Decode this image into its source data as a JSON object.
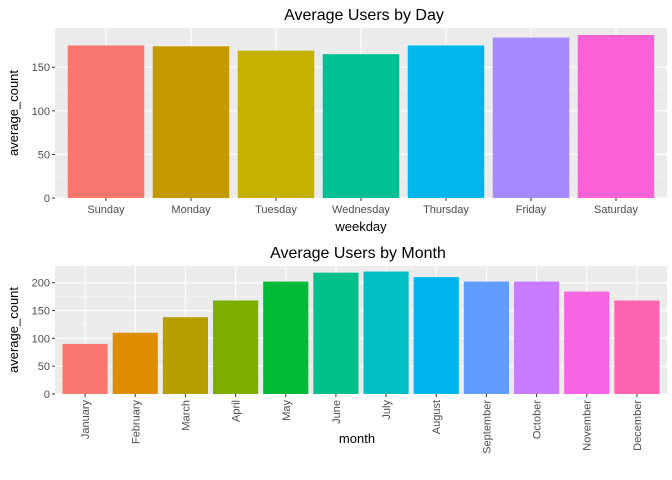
{
  "chart_data": [
    {
      "type": "bar",
      "title": "Average Users by Day",
      "xlabel": "weekday",
      "ylabel": "average_count",
      "categories": [
        "Sunday",
        "Monday",
        "Tuesday",
        "Wednesday",
        "Thursday",
        "Friday",
        "Saturday"
      ],
      "values": [
        175,
        174,
        169,
        165,
        175,
        184,
        187
      ],
      "colors": [
        "#F8766D",
        "#C49A00",
        "#C4B100",
        "#00C094",
        "#00B6EB",
        "#A58AFF",
        "#FB61D7"
      ],
      "yticks": [
        0,
        50,
        100,
        150
      ],
      "ylim": [
        0,
        195
      ],
      "grid": true,
      "legend": "none"
    },
    {
      "type": "bar",
      "title": "Average Users by Month",
      "xlabel": "month",
      "ylabel": "average_count",
      "categories": [
        "January",
        "February",
        "March",
        "April",
        "May",
        "June",
        "July",
        "August",
        "September",
        "October",
        "November",
        "December"
      ],
      "values": [
        90,
        110,
        138,
        168,
        202,
        218,
        220,
        210,
        202,
        202,
        184,
        168
      ],
      "colors": [
        "#F8766D",
        "#DE8C00",
        "#B79F00",
        "#7CAE00",
        "#00BA38",
        "#00C08B",
        "#00BFC4",
        "#00B4F0",
        "#619CFF",
        "#C77CFF",
        "#F564E3",
        "#FF64B0"
      ],
      "yticks": [
        0,
        50,
        100,
        150,
        200
      ],
      "ylim": [
        0,
        230
      ],
      "grid": true,
      "legend": "none"
    }
  ]
}
